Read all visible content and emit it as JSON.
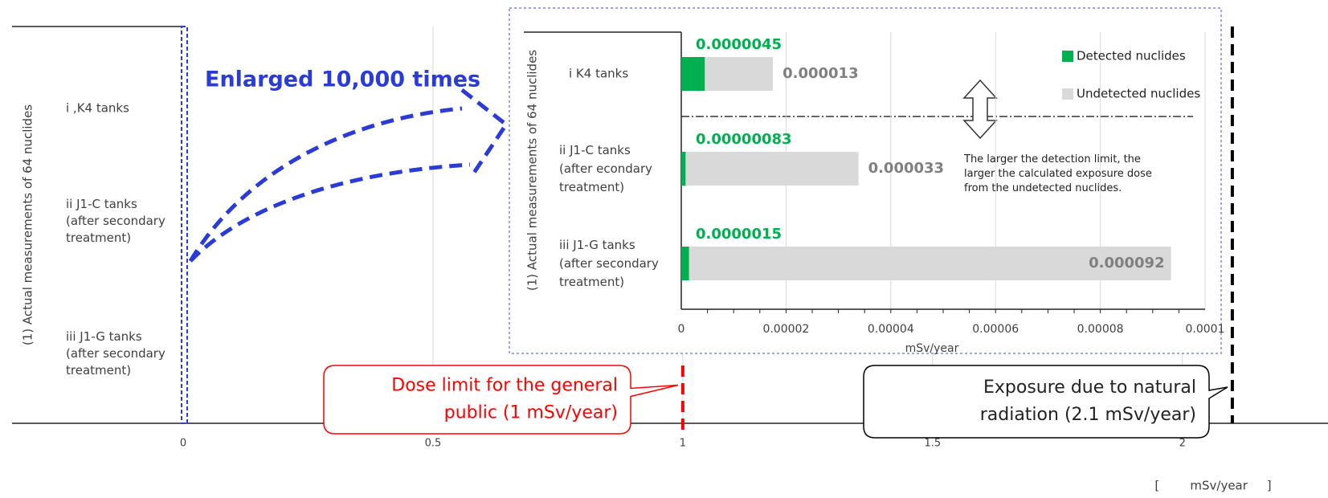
{
  "chart_data": [
    {
      "type": "bar",
      "orientation": "horizontal",
      "y_label": "(1) Actual measurements of 64 nuclides",
      "categories": [
        "i ,K4 tanks",
        "ii J1-C tanks\n(after secondary\ntreatment)",
        "iii J1-G tanks\n(after secondary\ntreatment)"
      ],
      "xlim": [
        0,
        2.15
      ],
      "xticks": [
        0,
        0.5,
        1,
        1.5,
        2
      ],
      "grid": true,
      "x_label": "[        mSv/year     ]",
      "reference_lines": [
        {
          "value": 1,
          "label": "Dose limit for the general\npublic (1 mSv/year)",
          "color": "#ff0000"
        },
        {
          "value": 2.1,
          "label": "Exposure due to natural\nradiation (2.1 mSv/year)",
          "color": "#000000"
        }
      ],
      "annotation": "Enlarged 10,000 times"
    },
    {
      "type": "stacked_bar",
      "orientation": "horizontal",
      "y_label": "(1) Actual measurements of 64 nuclides",
      "categories": [
        "i K4 tanks",
        "ii J1-C tanks\n(after econdary\ntreatment)",
        "iii J1-G tanks\n(after secondary\ntreatment)"
      ],
      "series": [
        {
          "name": "Detected nuclides",
          "color": "#00b050",
          "values": [
            4.5e-06,
            8.3e-07,
            1.5e-06
          ],
          "value_labels": [
            "0.0000045",
            "0.00000083",
            "0.0000015"
          ]
        },
        {
          "name": "Undetected nuclides",
          "color": "#d9d9d9",
          "values": [
            1.3e-05,
            3.3e-05,
            9.2e-05
          ]
        }
      ],
      "xlim": [
        0,
        0.0001
      ],
      "xticks": [
        0,
        2e-05,
        4e-05,
        6e-05,
        8e-05,
        0.0001
      ],
      "grid": true,
      "x_label": "mSv/year",
      "legend": "top-right",
      "annotation": "The larger the detection limit, the larger the calculated exposure dose from the undetected nuclides."
    }
  ]
}
